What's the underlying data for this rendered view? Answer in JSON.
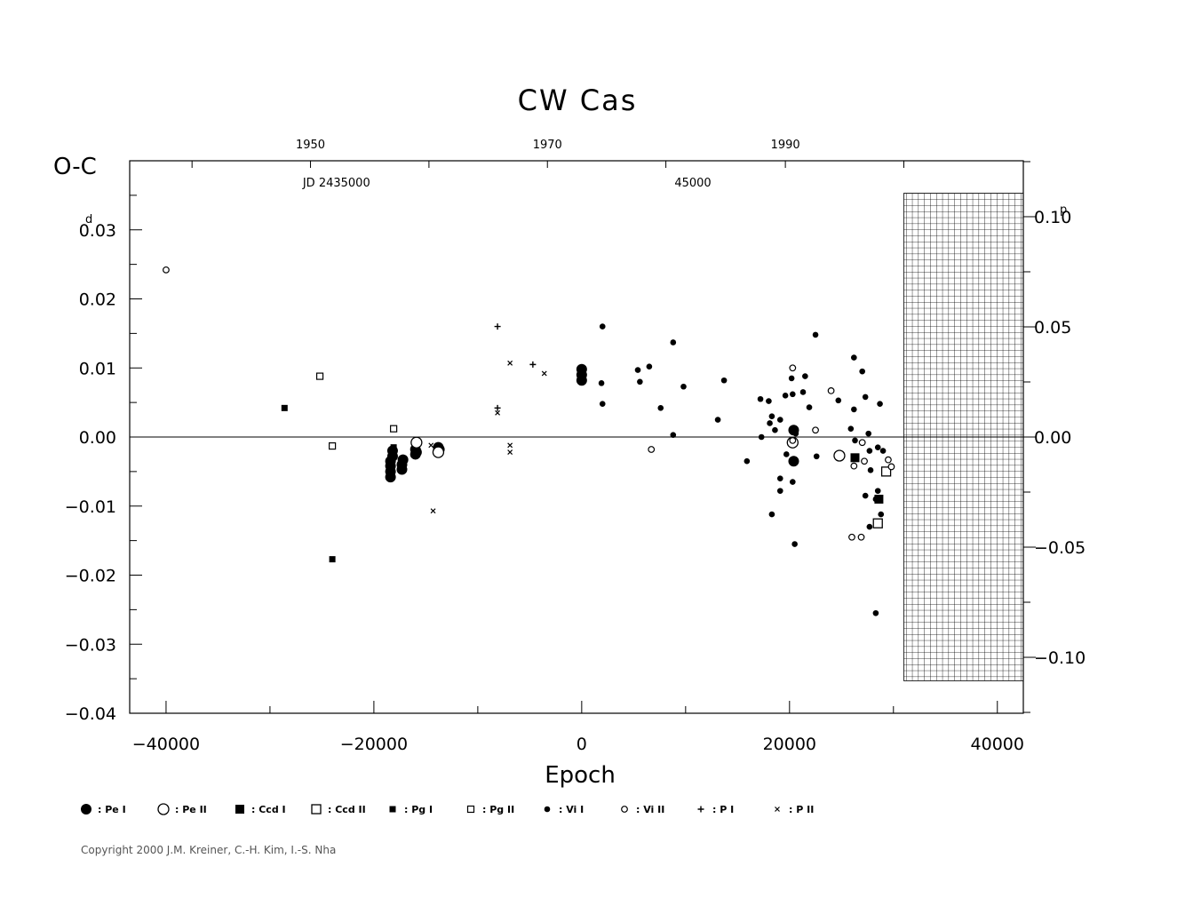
{
  "chart_data": {
    "type": "scatter",
    "title": "CW Cas",
    "xlabel": "Epoch",
    "ylabel": "O-C",
    "xlim": [
      -43500,
      42500
    ],
    "ylim": [
      -0.04,
      0.04
    ],
    "y_unit_left": "d",
    "y_unit_right": "p",
    "x_ticks": [
      {
        "value": -40000,
        "label": "−40000"
      },
      {
        "value": -20000,
        "label": "−20000"
      },
      {
        "value": 0,
        "label": "0"
      },
      {
        "value": 20000,
        "label": "20000"
      },
      {
        "value": 40000,
        "label": "40000"
      }
    ],
    "y_ticks_left": [
      {
        "value": 0.03,
        "label": "0.03"
      },
      {
        "value": 0.02,
        "label": "0.02"
      },
      {
        "value": 0.01,
        "label": "0.01"
      },
      {
        "value": 0.0,
        "label": "0.00"
      },
      {
        "value": -0.01,
        "label": "−0.01"
      },
      {
        "value": -0.02,
        "label": "−0.02"
      },
      {
        "value": -0.03,
        "label": "−0.03"
      },
      {
        "value": -0.04,
        "label": "−0.04"
      }
    ],
    "y_ticks_right": [
      {
        "value": 0.1,
        "label": "0.10"
      },
      {
        "value": 0.05,
        "label": "0.05"
      },
      {
        "value": 0.0,
        "label": "0.00"
      },
      {
        "value": -0.05,
        "label": "−0.05"
      },
      {
        "value": -0.1,
        "label": "−0.10"
      }
    ],
    "period_days": 0.319,
    "top_year_labels": [
      {
        "year": 1950,
        "epoch": -26100,
        "label": "1950"
      },
      {
        "year": 1970,
        "epoch": -3300,
        "label": "1970"
      },
      {
        "year": 1990,
        "epoch": 19600,
        "label": "1990"
      }
    ],
    "top_ticks_epoch": [
      -37500,
      -26100,
      -14700,
      -3300,
      8100,
      19600,
      31000
    ],
    "jd_labels": [
      {
        "epoch": -23600,
        "label": "JD  2435000"
      },
      {
        "epoch": 10700,
        "label": "45000"
      }
    ],
    "reference_line": 0,
    "hatched_region": {
      "x_from": 31000,
      "x_to": 42500,
      "y_from": -0.0353,
      "y_to": 0.0353
    },
    "series": [
      {
        "name": "Pe I",
        "marker": "filled-circle-large",
        "points": [
          [
            -18400,
            -0.0058
          ],
          [
            -18400,
            -0.005
          ],
          [
            -18400,
            -0.0042
          ],
          [
            -18400,
            -0.0035
          ],
          [
            -18200,
            -0.0028
          ],
          [
            -18200,
            -0.002
          ],
          [
            -17300,
            -0.0047
          ],
          [
            -17300,
            -0.004
          ],
          [
            -17200,
            -0.0033
          ],
          [
            -16000,
            -0.0025
          ],
          [
            -16000,
            -0.0018
          ],
          [
            -15900,
            -0.0022
          ],
          [
            -13800,
            -0.0015
          ],
          [
            -13700,
            -0.0018
          ],
          [
            0,
            0.0098
          ],
          [
            0,
            0.009
          ],
          [
            0,
            0.0082
          ],
          [
            20400,
            0.001
          ],
          [
            20400,
            -0.0035
          ]
        ]
      },
      {
        "name": "Pe II",
        "marker": "open-circle-large",
        "points": [
          [
            -15900,
            -0.0008
          ],
          [
            -13800,
            -0.0022
          ],
          [
            20300,
            -0.0008
          ],
          [
            24800,
            -0.0027
          ]
        ]
      },
      {
        "name": "Ccd I",
        "marker": "filled-square",
        "points": [
          [
            26300,
            -0.003
          ],
          [
            28600,
            -0.009
          ]
        ]
      },
      {
        "name": "Ccd II",
        "marker": "open-square",
        "points": [
          [
            28500,
            -0.0125
          ],
          [
            29300,
            -0.005
          ]
        ]
      },
      {
        "name": "Pg I",
        "marker": "filled-square-small",
        "points": [
          [
            -28600,
            0.0042
          ],
          [
            -24000,
            -0.0177
          ],
          [
            -18100,
            -0.0015
          ]
        ]
      },
      {
        "name": "Pg II",
        "marker": "open-square-small",
        "points": [
          [
            -25200,
            0.0088
          ],
          [
            -24000,
            -0.0013
          ],
          [
            -18100,
            0.0012
          ]
        ]
      },
      {
        "name": "Vi I",
        "marker": "filled-circle-small",
        "points": [
          [
            2000,
            0.016
          ],
          [
            1900,
            0.0078
          ],
          [
            2000,
            0.0048
          ],
          [
            5400,
            0.0097
          ],
          [
            5600,
            0.008
          ],
          [
            6500,
            0.0102
          ],
          [
            7600,
            0.0042
          ],
          [
            8800,
            0.0137
          ],
          [
            8800,
            0.0003
          ],
          [
            9800,
            0.0073
          ],
          [
            13100,
            0.0025
          ],
          [
            13700,
            0.0082
          ],
          [
            15900,
            -0.0035
          ],
          [
            17200,
            0.0055
          ],
          [
            17300,
            0.0
          ],
          [
            18000,
            0.0052
          ],
          [
            18100,
            0.002
          ],
          [
            18300,
            0.003
          ],
          [
            18300,
            -0.0112
          ],
          [
            18600,
            0.001
          ],
          [
            19100,
            0.0025
          ],
          [
            19100,
            -0.006
          ],
          [
            19100,
            -0.0078
          ],
          [
            19600,
            0.006
          ],
          [
            19700,
            -0.0025
          ],
          [
            20200,
            0.0085
          ],
          [
            20300,
            0.0062
          ],
          [
            20300,
            -0.0065
          ],
          [
            20500,
            -0.0155
          ],
          [
            20600,
            0.0005
          ],
          [
            21300,
            0.0065
          ],
          [
            21500,
            0.0088
          ],
          [
            21900,
            0.0043
          ],
          [
            22500,
            0.0148
          ],
          [
            22600,
            -0.0028
          ],
          [
            24700,
            0.0053
          ],
          [
            25900,
            0.0012
          ],
          [
            26200,
            0.0115
          ],
          [
            26200,
            0.004
          ],
          [
            26300,
            -0.0005
          ],
          [
            27000,
            0.0095
          ],
          [
            27300,
            0.0058
          ],
          [
            27300,
            -0.0085
          ],
          [
            27600,
            0.0005
          ],
          [
            27700,
            -0.002
          ],
          [
            27700,
            -0.013
          ],
          [
            27800,
            -0.0048
          ],
          [
            28300,
            -0.009
          ],
          [
            28300,
            -0.0255
          ],
          [
            28500,
            -0.0078
          ],
          [
            28500,
            -0.0015
          ],
          [
            28700,
            0.0048
          ],
          [
            28800,
            -0.0112
          ],
          [
            29000,
            -0.002
          ]
        ]
      },
      {
        "name": "Vi II",
        "marker": "open-circle-small",
        "points": [
          [
            -40000,
            0.0242
          ],
          [
            6700,
            -0.0018
          ],
          [
            20300,
            0.01
          ],
          [
            20300,
            -0.0005
          ],
          [
            22500,
            0.001
          ],
          [
            24000,
            0.0067
          ],
          [
            26000,
            -0.0145
          ],
          [
            26200,
            -0.0042
          ],
          [
            26900,
            -0.0145
          ],
          [
            27000,
            -0.0008
          ],
          [
            27200,
            -0.0035
          ],
          [
            29500,
            -0.0033
          ],
          [
            29800,
            -0.0043
          ]
        ]
      },
      {
        "name": "P I",
        "marker": "plus",
        "points": [
          [
            -8100,
            0.016
          ],
          [
            -8100,
            0.0042
          ],
          [
            -4700,
            0.0105
          ]
        ]
      },
      {
        "name": "P II",
        "marker": "cross",
        "points": [
          [
            -14500,
            -0.0012
          ],
          [
            -14300,
            -0.0107
          ],
          [
            -8100,
            0.0035
          ],
          [
            -6900,
            0.0107
          ],
          [
            -6900,
            -0.0012
          ],
          [
            -6900,
            -0.0022
          ],
          [
            -3600,
            0.0092
          ]
        ]
      }
    ]
  },
  "legend": [
    {
      "marker": "filled-circle-large",
      "label": ": Pe  I"
    },
    {
      "marker": "open-circle-large",
      "label": ": Pe  II"
    },
    {
      "marker": "filled-square",
      "label": ": Ccd  I"
    },
    {
      "marker": "open-square",
      "label": ": Ccd  II"
    },
    {
      "marker": "filled-square-small",
      "label": ": Pg  I"
    },
    {
      "marker": "open-square-small",
      "label": ": Pg  II"
    },
    {
      "marker": "filled-circle-small",
      "label": ": Vi  I"
    },
    {
      "marker": "open-circle-small",
      "label": ": Vi  II"
    },
    {
      "marker": "plus",
      "label": ": P  I"
    },
    {
      "marker": "cross",
      "label": ": P  II"
    }
  ],
  "copyright": "Copyright 2000 J.M. Kreiner, C.-H. Kim, I.-S. Nha"
}
